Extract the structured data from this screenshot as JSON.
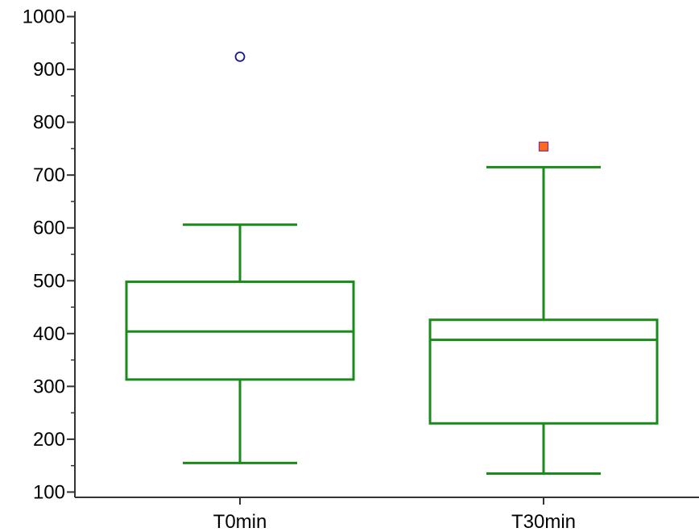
{
  "chart_data": {
    "type": "box",
    "categories": [
      "T0min",
      "T30min"
    ],
    "boxes": [
      {
        "category": "T0min",
        "min": 155,
        "q1": 313,
        "median": 404,
        "q3": 498,
        "max": 606,
        "outliers": [
          {
            "value": 924,
            "marker": "circle"
          }
        ]
      },
      {
        "category": "T30min",
        "min": 135,
        "q1": 230,
        "median": 388,
        "q3": 426,
        "max": 715,
        "outliers": [
          {
            "value": 754,
            "marker": "square"
          }
        ]
      }
    ],
    "ylim": [
      90,
      1010
    ],
    "yticks": [
      "100",
      "200",
      "300",
      "400",
      "500",
      "600",
      "700",
      "800",
      "900",
      "1000"
    ],
    "title": "",
    "xlabel": "",
    "ylabel": "",
    "colors": {
      "box": "#1a8a1a",
      "circle_outlier": "#1a1a8a",
      "square_outlier_fill": "#ff6a1a",
      "square_outlier_stroke": "#8a2a8a",
      "axis": "#333333"
    }
  }
}
